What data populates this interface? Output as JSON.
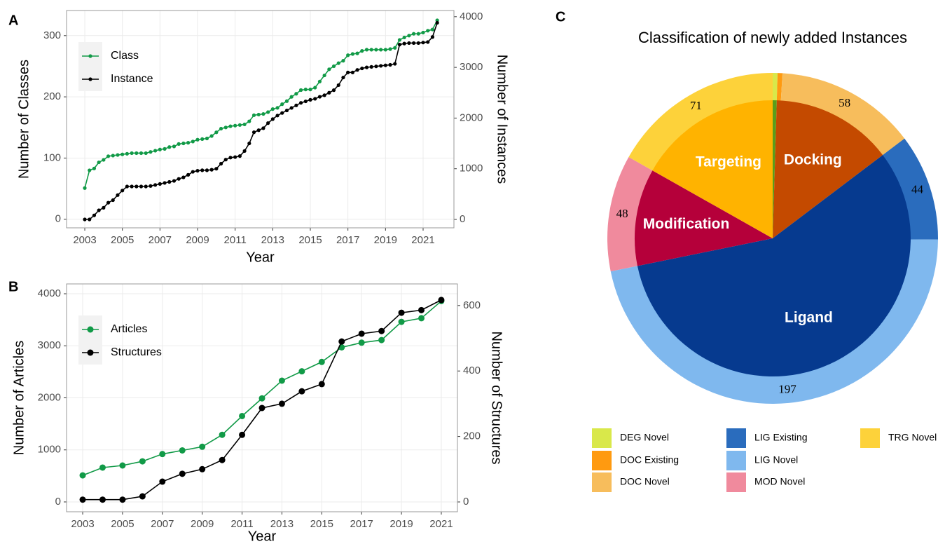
{
  "chart_data": [
    {
      "type": "line",
      "panel_label": "A",
      "xlabel": "Year",
      "ylabel": "Number of Classes",
      "y2label": "Number of Instances",
      "x": [
        2003,
        2003.25,
        2003.5,
        2003.75,
        2004,
        2004.25,
        2004.5,
        2004.75,
        2005,
        2005.25,
        2005.5,
        2005.75,
        2006,
        2006.25,
        2006.5,
        2006.75,
        2007,
        2007.25,
        2007.5,
        2007.75,
        2008,
        2008.25,
        2008.5,
        2008.75,
        2009,
        2009.25,
        2009.5,
        2009.75,
        2010,
        2010.25,
        2010.5,
        2010.75,
        2011,
        2011.25,
        2011.5,
        2011.75,
        2012,
        2012.25,
        2012.5,
        2012.75,
        2013,
        2013.25,
        2013.5,
        2013.75,
        2014,
        2014.25,
        2014.5,
        2014.75,
        2015,
        2015.25,
        2015.5,
        2015.75,
        2016,
        2016.25,
        2016.5,
        2016.75,
        2017,
        2017.25,
        2017.5,
        2017.75,
        2018,
        2018.25,
        2018.5,
        2018.75,
        2019,
        2019.25,
        2019.5,
        2019.75,
        2020,
        2020.25,
        2020.5,
        2020.75,
        2021,
        2021.25,
        2021.5,
        2021.75
      ],
      "xlim": [
        2002.03,
        2022.64
      ],
      "xticks": [
        2003,
        2005,
        2007,
        2009,
        2011,
        2013,
        2015,
        2017,
        2019,
        2021
      ],
      "ylim": [
        -14,
        341
      ],
      "yticks": [
        0,
        100,
        200,
        300
      ],
      "y2lim": [
        -166,
        4122
      ],
      "y2ticks": [
        0,
        1000,
        2000,
        3000,
        4000
      ],
      "grid": true,
      "legend": "top-left",
      "series": [
        {
          "name": "Class",
          "color": "#119a47",
          "axis": "y",
          "values": [
            51,
            80,
            83,
            93,
            97,
            103,
            104,
            105,
            106,
            107,
            108,
            108,
            108,
            108,
            110,
            112,
            114,
            115,
            118,
            119,
            123,
            124,
            125,
            127,
            130,
            131,
            132,
            136,
            142,
            148,
            150,
            152,
            153,
            154,
            155,
            160,
            170,
            171,
            172,
            175,
            180,
            182,
            188,
            193,
            200,
            205,
            211,
            212,
            212,
            215,
            225,
            235,
            245,
            250,
            255,
            259,
            268,
            270,
            271,
            275,
            277,
            277,
            277,
            277,
            277,
            278,
            280,
            293,
            297,
            300,
            303,
            303,
            305,
            308,
            310,
            325
          ]
        },
        {
          "name": "Instance",
          "color": "#000000",
          "axis": "y2",
          "values": [
            0,
            0,
            80,
            180,
            230,
            330,
            380,
            480,
            570,
            650,
            650,
            650,
            650,
            650,
            660,
            680,
            700,
            720,
            740,
            760,
            800,
            830,
            880,
            940,
            960,
            970,
            970,
            980,
            1000,
            1100,
            1180,
            1220,
            1230,
            1250,
            1350,
            1500,
            1720,
            1760,
            1800,
            1900,
            1980,
            2050,
            2100,
            2150,
            2200,
            2250,
            2300,
            2330,
            2360,
            2380,
            2420,
            2450,
            2500,
            2550,
            2650,
            2800,
            2900,
            2900,
            2950,
            2980,
            3000,
            3010,
            3020,
            3030,
            3040,
            3050,
            3070,
            3450,
            3470,
            3480,
            3480,
            3480,
            3490,
            3500,
            3600,
            3880
          ]
        }
      ]
    },
    {
      "type": "line",
      "panel_label": "B",
      "xlabel": "Year",
      "ylabel": "Number of Articles",
      "y2label": "Number of Structures",
      "x": [
        2003,
        2004,
        2005,
        2006,
        2007,
        2008,
        2009,
        2010,
        2011,
        2012,
        2013,
        2014,
        2015,
        2016,
        2017,
        2018,
        2019,
        2020,
        2021
      ],
      "xlim": [
        2002.19,
        2021.81
      ],
      "xticks": [
        2003,
        2005,
        2007,
        2009,
        2011,
        2013,
        2015,
        2017,
        2019,
        2021
      ],
      "ylim": [
        -189,
        4189
      ],
      "yticks": [
        0,
        1000,
        2000,
        3000,
        4000
      ],
      "y2lim": [
        -30,
        666
      ],
      "y2ticks": [
        0,
        200,
        400,
        600
      ],
      "grid": true,
      "legend": "top-left",
      "series": [
        {
          "name": "Articles",
          "color": "#119a47",
          "axis": "y",
          "values": [
            510,
            660,
            700,
            780,
            920,
            990,
            1060,
            1290,
            1650,
            1990,
            2330,
            2510,
            2690,
            2970,
            3060,
            3110,
            3460,
            3530,
            3860
          ]
        },
        {
          "name": "Structures",
          "color": "#000000",
          "axis": "y2",
          "values": [
            7,
            7,
            7,
            17,
            62,
            86,
            100,
            128,
            205,
            287,
            300,
            338,
            360,
            490,
            514,
            522,
            578,
            586,
            617
          ]
        }
      ]
    },
    {
      "type": "pie",
      "panel_label": "C",
      "title": "Classification of newly added Instances",
      "inner": {
        "categories": [
          null,
          "Docking",
          "Ligand",
          "Modification",
          "Targeting"
        ],
        "values": [
          2,
          60,
          241,
          48,
          71
        ],
        "colors": [
          "#5a9e1a",
          "#c44a00",
          "#063a8f",
          "#b5003a",
          "#ffb300"
        ]
      },
      "series": [
        {
          "name": "DEG Novel",
          "color": "#d9e84a",
          "value": 2
        },
        {
          "name": "DOC Existing",
          "color": "#ff9a10",
          "value": 2
        },
        {
          "name": "DOC Novel",
          "color": "#f7bd5c",
          "value": 58
        },
        {
          "name": "LIG Existing",
          "color": "#2a6cbd",
          "value": 44
        },
        {
          "name": "LIG Novel",
          "color": "#7fb8ee",
          "value": 197
        },
        {
          "name": "MOD Novel",
          "color": "#f08a9d",
          "value": 48
        },
        {
          "name": "TRG Novel",
          "color": "#fdd23a",
          "value": 71
        }
      ]
    }
  ]
}
